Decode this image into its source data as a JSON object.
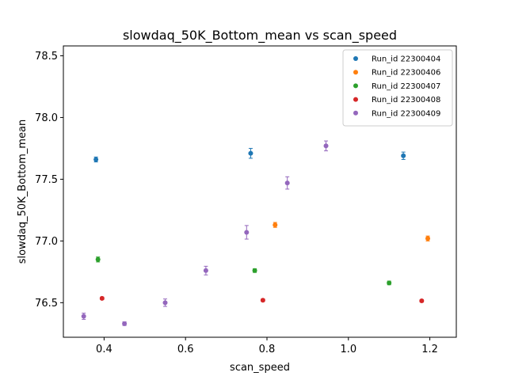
{
  "chart_data": {
    "type": "scatter",
    "title": "slowdaq_50K_Bottom_mean vs scan_speed",
    "xlabel": "scan_speed",
    "ylabel": "slowdaq_50K_Bottom_mean",
    "xlim": [
      0.3,
      1.265
    ],
    "ylim": [
      76.22,
      78.58
    ],
    "xticks": [
      0.4,
      0.6,
      0.8,
      1.0,
      1.2
    ],
    "xtick_labels": [
      "0.4",
      "0.6",
      "0.8",
      "1.0",
      "1.2"
    ],
    "yticks": [
      76.5,
      77.0,
      77.5,
      78.0,
      78.5
    ],
    "ytick_labels": [
      "76.5",
      "77.0",
      "77.5",
      "78.0",
      "78.5"
    ],
    "grid": false,
    "legend_position": "top-right",
    "error_bars": true,
    "series": [
      {
        "name": "Run_id 22300404",
        "color": "#1f77b4",
        "points": [
          {
            "x": 0.38,
            "y": 77.66,
            "err": 0.02
          },
          {
            "x": 0.76,
            "y": 77.71,
            "err": 0.04
          },
          {
            "x": 1.135,
            "y": 77.69,
            "err": 0.03
          }
        ]
      },
      {
        "name": "Run_id 22300406",
        "color": "#ff7f0e",
        "points": [
          {
            "x": 0.82,
            "y": 77.13,
            "err": 0.02
          },
          {
            "x": 1.195,
            "y": 77.02,
            "err": 0.02
          }
        ]
      },
      {
        "name": "Run_id 22300407",
        "color": "#2ca02c",
        "points": [
          {
            "x": 0.385,
            "y": 76.85,
            "err": 0.02
          },
          {
            "x": 0.77,
            "y": 76.76,
            "err": 0.015
          },
          {
            "x": 1.1,
            "y": 76.66,
            "err": 0.015
          }
        ]
      },
      {
        "name": "Run_id 22300408",
        "color": "#d62728",
        "points": [
          {
            "x": 0.395,
            "y": 76.535,
            "err": 0.01
          },
          {
            "x": 0.79,
            "y": 76.52,
            "err": 0.01
          },
          {
            "x": 1.18,
            "y": 76.515,
            "err": 0.01
          }
        ]
      },
      {
        "name": "Run_id 22300409",
        "color": "#9467bd",
        "points": [
          {
            "x": 0.35,
            "y": 76.39,
            "err": 0.025
          },
          {
            "x": 0.45,
            "y": 76.33,
            "err": 0.015
          },
          {
            "x": 0.55,
            "y": 76.5,
            "err": 0.03
          },
          {
            "x": 0.65,
            "y": 76.76,
            "err": 0.035
          },
          {
            "x": 0.75,
            "y": 77.07,
            "err": 0.055
          },
          {
            "x": 0.85,
            "y": 77.47,
            "err": 0.05
          },
          {
            "x": 0.945,
            "y": 77.77,
            "err": 0.04
          }
        ]
      }
    ]
  }
}
